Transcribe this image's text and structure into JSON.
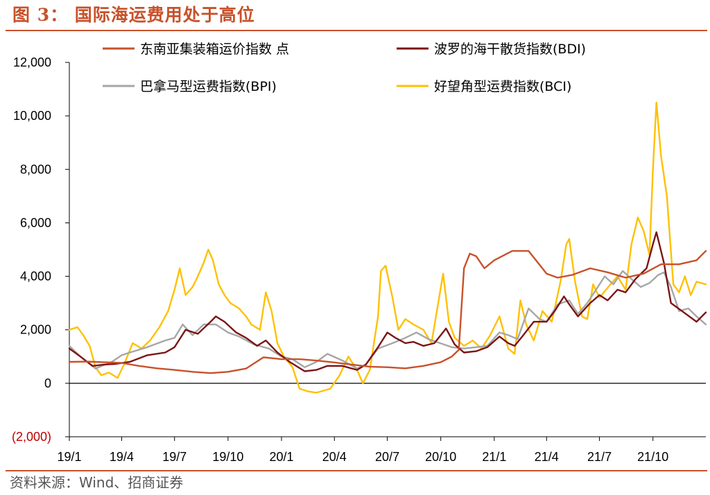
{
  "title": "图 3：  国际海运费用处于高位",
  "source": "资料来源：Wind、招商证券",
  "chart_data": {
    "type": "line",
    "ylim": [
      -2000,
      12000
    ],
    "yticks": [
      -2000,
      0,
      2000,
      4000,
      6000,
      8000,
      10000,
      12000
    ],
    "ytick_labels": [
      "(2,000)",
      "0",
      "2,000",
      "4,000",
      "6,000",
      "8,000",
      "10,000",
      "12,000"
    ],
    "xlim": [
      "2019-01-01",
      "2021-12-31"
    ],
    "xticks": [
      "2019-01-01",
      "2019-04-01",
      "2019-07-01",
      "2019-10-01",
      "2020-01-01",
      "2020-04-01",
      "2020-07-01",
      "2020-10-01",
      "2021-01-01",
      "2021-04-01",
      "2021-07-01",
      "2021-10-01"
    ],
    "xtick_labels": [
      "19/1",
      "19/4",
      "19/7",
      "19/10",
      "20/1",
      "20/4",
      "20/7",
      "20/10",
      "21/1",
      "21/4",
      "21/7",
      "21/10"
    ],
    "legend_position": "top",
    "series": [
      {
        "name": "东南亚集装箱运价指数 点",
        "color": "#c8512a",
        "points": [
          [
            "2019-01-01",
            800
          ],
          [
            "2019-02-01",
            810
          ],
          [
            "2019-03-01",
            790
          ],
          [
            "2019-04-01",
            760
          ],
          [
            "2019-05-01",
            650
          ],
          [
            "2019-06-01",
            560
          ],
          [
            "2019-07-01",
            500
          ],
          [
            "2019-08-01",
            430
          ],
          [
            "2019-09-01",
            380
          ],
          [
            "2019-10-01",
            430
          ],
          [
            "2019-11-01",
            550
          ],
          [
            "2019-12-01",
            970
          ],
          [
            "2020-01-01",
            900
          ],
          [
            "2020-02-01",
            900
          ],
          [
            "2020-03-01",
            850
          ],
          [
            "2020-04-01",
            780
          ],
          [
            "2020-05-01",
            700
          ],
          [
            "2020-06-01",
            620
          ],
          [
            "2020-07-01",
            600
          ],
          [
            "2020-08-01",
            560
          ],
          [
            "2020-09-01",
            650
          ],
          [
            "2020-10-01",
            790
          ],
          [
            "2020-10-20",
            1000
          ],
          [
            "2020-11-01",
            1250
          ],
          [
            "2020-11-10",
            4300
          ],
          [
            "2020-11-20",
            4850
          ],
          [
            "2020-12-01",
            4750
          ],
          [
            "2020-12-15",
            4300
          ],
          [
            "2021-01-01",
            4600
          ],
          [
            "2021-02-01",
            4950
          ],
          [
            "2021-03-01",
            4950
          ],
          [
            "2021-04-01",
            4100
          ],
          [
            "2021-04-20",
            3950
          ],
          [
            "2021-05-15",
            4050
          ],
          [
            "2021-06-15",
            4300
          ],
          [
            "2021-07-15",
            4150
          ],
          [
            "2021-08-15",
            3950
          ],
          [
            "2021-09-15",
            4100
          ],
          [
            "2021-10-15",
            4450
          ],
          [
            "2021-11-15",
            4450
          ],
          [
            "2021-12-15",
            4600
          ],
          [
            "2021-12-31",
            4950
          ]
        ]
      },
      {
        "name": "波罗的海干散货指数(BDI)",
        "color": "#7b1414",
        "points": [
          [
            "2019-01-01",
            1300
          ],
          [
            "2019-01-20",
            1000
          ],
          [
            "2019-02-10",
            650
          ],
          [
            "2019-03-01",
            700
          ],
          [
            "2019-03-20",
            720
          ],
          [
            "2019-04-15",
            800
          ],
          [
            "2019-05-15",
            1050
          ],
          [
            "2019-06-15",
            1150
          ],
          [
            "2019-07-01",
            1350
          ],
          [
            "2019-07-20",
            2000
          ],
          [
            "2019-08-10",
            1850
          ],
          [
            "2019-09-01",
            2300
          ],
          [
            "2019-09-10",
            2500
          ],
          [
            "2019-09-25",
            2300
          ],
          [
            "2019-10-15",
            1900
          ],
          [
            "2019-11-01",
            1700
          ],
          [
            "2019-11-20",
            1400
          ],
          [
            "2019-12-05",
            1600
          ],
          [
            "2019-12-25",
            1150
          ],
          [
            "2020-01-15",
            800
          ],
          [
            "2020-02-10",
            450
          ],
          [
            "2020-03-01",
            500
          ],
          [
            "2020-03-20",
            650
          ],
          [
            "2020-04-15",
            650
          ],
          [
            "2020-05-10",
            500
          ],
          [
            "2020-05-25",
            700
          ],
          [
            "2020-06-15",
            1350
          ],
          [
            "2020-07-01",
            1900
          ],
          [
            "2020-07-15",
            1700
          ],
          [
            "2020-08-01",
            1500
          ],
          [
            "2020-08-15",
            1550
          ],
          [
            "2020-09-01",
            1400
          ],
          [
            "2020-09-20",
            1500
          ],
          [
            "2020-10-10",
            2050
          ],
          [
            "2020-10-25",
            1450
          ],
          [
            "2020-11-10",
            1150
          ],
          [
            "2020-12-01",
            1200
          ],
          [
            "2020-12-20",
            1350
          ],
          [
            "2021-01-10",
            1750
          ],
          [
            "2021-01-25",
            1500
          ],
          [
            "2021-02-05",
            1400
          ],
          [
            "2021-02-20",
            1800
          ],
          [
            "2021-03-10",
            2300
          ],
          [
            "2021-04-01",
            2300
          ],
          [
            "2021-04-15",
            2700
          ],
          [
            "2021-05-01",
            3250
          ],
          [
            "2021-05-10",
            2950
          ],
          [
            "2021-05-25",
            2500
          ],
          [
            "2021-06-15",
            3000
          ],
          [
            "2021-07-01",
            3300
          ],
          [
            "2021-07-15",
            3100
          ],
          [
            "2021-08-01",
            3500
          ],
          [
            "2021-08-15",
            3400
          ],
          [
            "2021-09-01",
            3900
          ],
          [
            "2021-09-20",
            4300
          ],
          [
            "2021-10-01",
            5200
          ],
          [
            "2021-10-07",
            5650
          ],
          [
            "2021-10-20",
            4500
          ],
          [
            "2021-11-01",
            3000
          ],
          [
            "2021-11-20",
            2700
          ],
          [
            "2021-12-15",
            2300
          ],
          [
            "2021-12-31",
            2650
          ]
        ]
      },
      {
        "name": "巴拿马型运费指数(BPI)",
        "color": "#a6a6a6",
        "points": [
          [
            "2019-01-01",
            1400
          ],
          [
            "2019-01-20",
            1000
          ],
          [
            "2019-02-15",
            550
          ],
          [
            "2019-03-15",
            800
          ],
          [
            "2019-04-01",
            1050
          ],
          [
            "2019-04-15",
            1150
          ],
          [
            "2019-05-15",
            1350
          ],
          [
            "2019-06-15",
            1600
          ],
          [
            "2019-07-01",
            1700
          ],
          [
            "2019-07-15",
            2200
          ],
          [
            "2019-08-01",
            1800
          ],
          [
            "2019-08-20",
            2200
          ],
          [
            "2019-09-10",
            2200
          ],
          [
            "2019-10-01",
            1900
          ],
          [
            "2019-10-20",
            1750
          ],
          [
            "2019-11-15",
            1450
          ],
          [
            "2019-12-10",
            1300
          ],
          [
            "2020-01-01",
            1000
          ],
          [
            "2020-01-20",
            900
          ],
          [
            "2020-02-10",
            600
          ],
          [
            "2020-03-01",
            800
          ],
          [
            "2020-03-20",
            1100
          ],
          [
            "2020-04-15",
            850
          ],
          [
            "2020-05-10",
            550
          ],
          [
            "2020-05-25",
            700
          ],
          [
            "2020-06-15",
            1300
          ],
          [
            "2020-07-10",
            1500
          ],
          [
            "2020-08-01",
            1700
          ],
          [
            "2020-08-20",
            1900
          ],
          [
            "2020-09-10",
            1650
          ],
          [
            "2020-09-30",
            1500
          ],
          [
            "2020-10-20",
            1350
          ],
          [
            "2020-11-10",
            1300
          ],
          [
            "2020-12-01",
            1350
          ],
          [
            "2020-12-20",
            1400
          ],
          [
            "2021-01-10",
            1900
          ],
          [
            "2021-01-25",
            1800
          ],
          [
            "2021-02-10",
            1650
          ],
          [
            "2021-03-01",
            2800
          ],
          [
            "2021-03-20",
            2400
          ],
          [
            "2021-04-01",
            2300
          ],
          [
            "2021-04-20",
            2950
          ],
          [
            "2021-05-10",
            3100
          ],
          [
            "2021-05-25",
            2600
          ],
          [
            "2021-06-10",
            3000
          ],
          [
            "2021-06-25",
            3500
          ],
          [
            "2021-07-10",
            4000
          ],
          [
            "2021-07-25",
            3700
          ],
          [
            "2021-08-10",
            4200
          ],
          [
            "2021-08-25",
            3900
          ],
          [
            "2021-09-10",
            3600
          ],
          [
            "2021-09-25",
            3750
          ],
          [
            "2021-10-10",
            4050
          ],
          [
            "2021-10-20",
            4150
          ],
          [
            "2021-11-01",
            3600
          ],
          [
            "2021-11-15",
            2700
          ],
          [
            "2021-12-01",
            2800
          ],
          [
            "2021-12-15",
            2500
          ],
          [
            "2021-12-31",
            2200
          ]
        ]
      },
      {
        "name": "好望角型运费指数(BCI)",
        "color": "#ffc000",
        "points": [
          [
            "2019-01-01",
            2000
          ],
          [
            "2019-01-15",
            2100
          ],
          [
            "2019-01-25",
            1800
          ],
          [
            "2019-02-05",
            1400
          ],
          [
            "2019-02-15",
            600
          ],
          [
            "2019-02-25",
            300
          ],
          [
            "2019-03-10",
            400
          ],
          [
            "2019-03-25",
            200
          ],
          [
            "2019-04-05",
            700
          ],
          [
            "2019-04-20",
            1500
          ],
          [
            "2019-05-05",
            1300
          ],
          [
            "2019-05-20",
            1600
          ],
          [
            "2019-06-05",
            2100
          ],
          [
            "2019-06-20",
            2700
          ],
          [
            "2019-07-01",
            3500
          ],
          [
            "2019-07-10",
            4300
          ],
          [
            "2019-07-20",
            3300
          ],
          [
            "2019-08-01",
            3600
          ],
          [
            "2019-08-10",
            4000
          ],
          [
            "2019-08-20",
            4500
          ],
          [
            "2019-08-28",
            5000
          ],
          [
            "2019-09-05",
            4600
          ],
          [
            "2019-09-15",
            3700
          ],
          [
            "2019-09-25",
            3300
          ],
          [
            "2019-10-05",
            3000
          ],
          [
            "2019-10-20",
            2800
          ],
          [
            "2019-11-01",
            2500
          ],
          [
            "2019-11-10",
            2200
          ],
          [
            "2019-11-25",
            2000
          ],
          [
            "2019-12-05",
            3400
          ],
          [
            "2019-12-15",
            2700
          ],
          [
            "2019-12-25",
            1500
          ],
          [
            "2020-01-05",
            1000
          ],
          [
            "2020-01-20",
            600
          ],
          [
            "2020-02-01",
            -200
          ],
          [
            "2020-02-15",
            -300
          ],
          [
            "2020-03-01",
            -350
          ],
          [
            "2020-03-10",
            -300
          ],
          [
            "2020-03-25",
            -200
          ],
          [
            "2020-04-10",
            300
          ],
          [
            "2020-04-25",
            1000
          ],
          [
            "2020-05-10",
            500
          ],
          [
            "2020-05-20",
            0
          ],
          [
            "2020-06-01",
            500
          ],
          [
            "2020-06-15",
            2500
          ],
          [
            "2020-06-20",
            4200
          ],
          [
            "2020-06-28",
            4400
          ],
          [
            "2020-07-10",
            3200
          ],
          [
            "2020-07-20",
            2000
          ],
          [
            "2020-08-01",
            2400
          ],
          [
            "2020-08-15",
            2200
          ],
          [
            "2020-09-01",
            2000
          ],
          [
            "2020-09-15",
            1500
          ],
          [
            "2020-09-25",
            2800
          ],
          [
            "2020-10-05",
            4100
          ],
          [
            "2020-10-15",
            2300
          ],
          [
            "2020-10-25",
            1700
          ],
          [
            "2020-11-10",
            1400
          ],
          [
            "2020-11-25",
            1600
          ],
          [
            "2020-12-10",
            1300
          ],
          [
            "2020-12-25",
            1800
          ],
          [
            "2021-01-10",
            2500
          ],
          [
            "2021-01-25",
            1300
          ],
          [
            "2021-02-05",
            1100
          ],
          [
            "2021-02-15",
            3100
          ],
          [
            "2021-02-25",
            2200
          ],
          [
            "2021-03-10",
            1600
          ],
          [
            "2021-03-25",
            2700
          ],
          [
            "2021-04-10",
            2300
          ],
          [
            "2021-04-25",
            3800
          ],
          [
            "2021-05-05",
            5200
          ],
          [
            "2021-05-10",
            5400
          ],
          [
            "2021-05-20",
            3800
          ],
          [
            "2021-06-01",
            2500
          ],
          [
            "2021-06-10",
            2400
          ],
          [
            "2021-06-20",
            3700
          ],
          [
            "2021-07-01",
            3200
          ],
          [
            "2021-07-20",
            3700
          ],
          [
            "2021-08-01",
            4000
          ],
          [
            "2021-08-15",
            3500
          ],
          [
            "2021-08-25",
            5200
          ],
          [
            "2021-09-05",
            6200
          ],
          [
            "2021-09-15",
            5700
          ],
          [
            "2021-09-25",
            4800
          ],
          [
            "2021-10-01",
            8000
          ],
          [
            "2021-10-07",
            10500
          ],
          [
            "2021-10-15",
            8500
          ],
          [
            "2021-10-25",
            7000
          ],
          [
            "2021-11-05",
            3700
          ],
          [
            "2021-11-15",
            3400
          ],
          [
            "2021-11-25",
            4000
          ],
          [
            "2021-12-05",
            3300
          ],
          [
            "2021-12-15",
            3800
          ],
          [
            "2021-12-31",
            3700
          ]
        ]
      }
    ]
  }
}
